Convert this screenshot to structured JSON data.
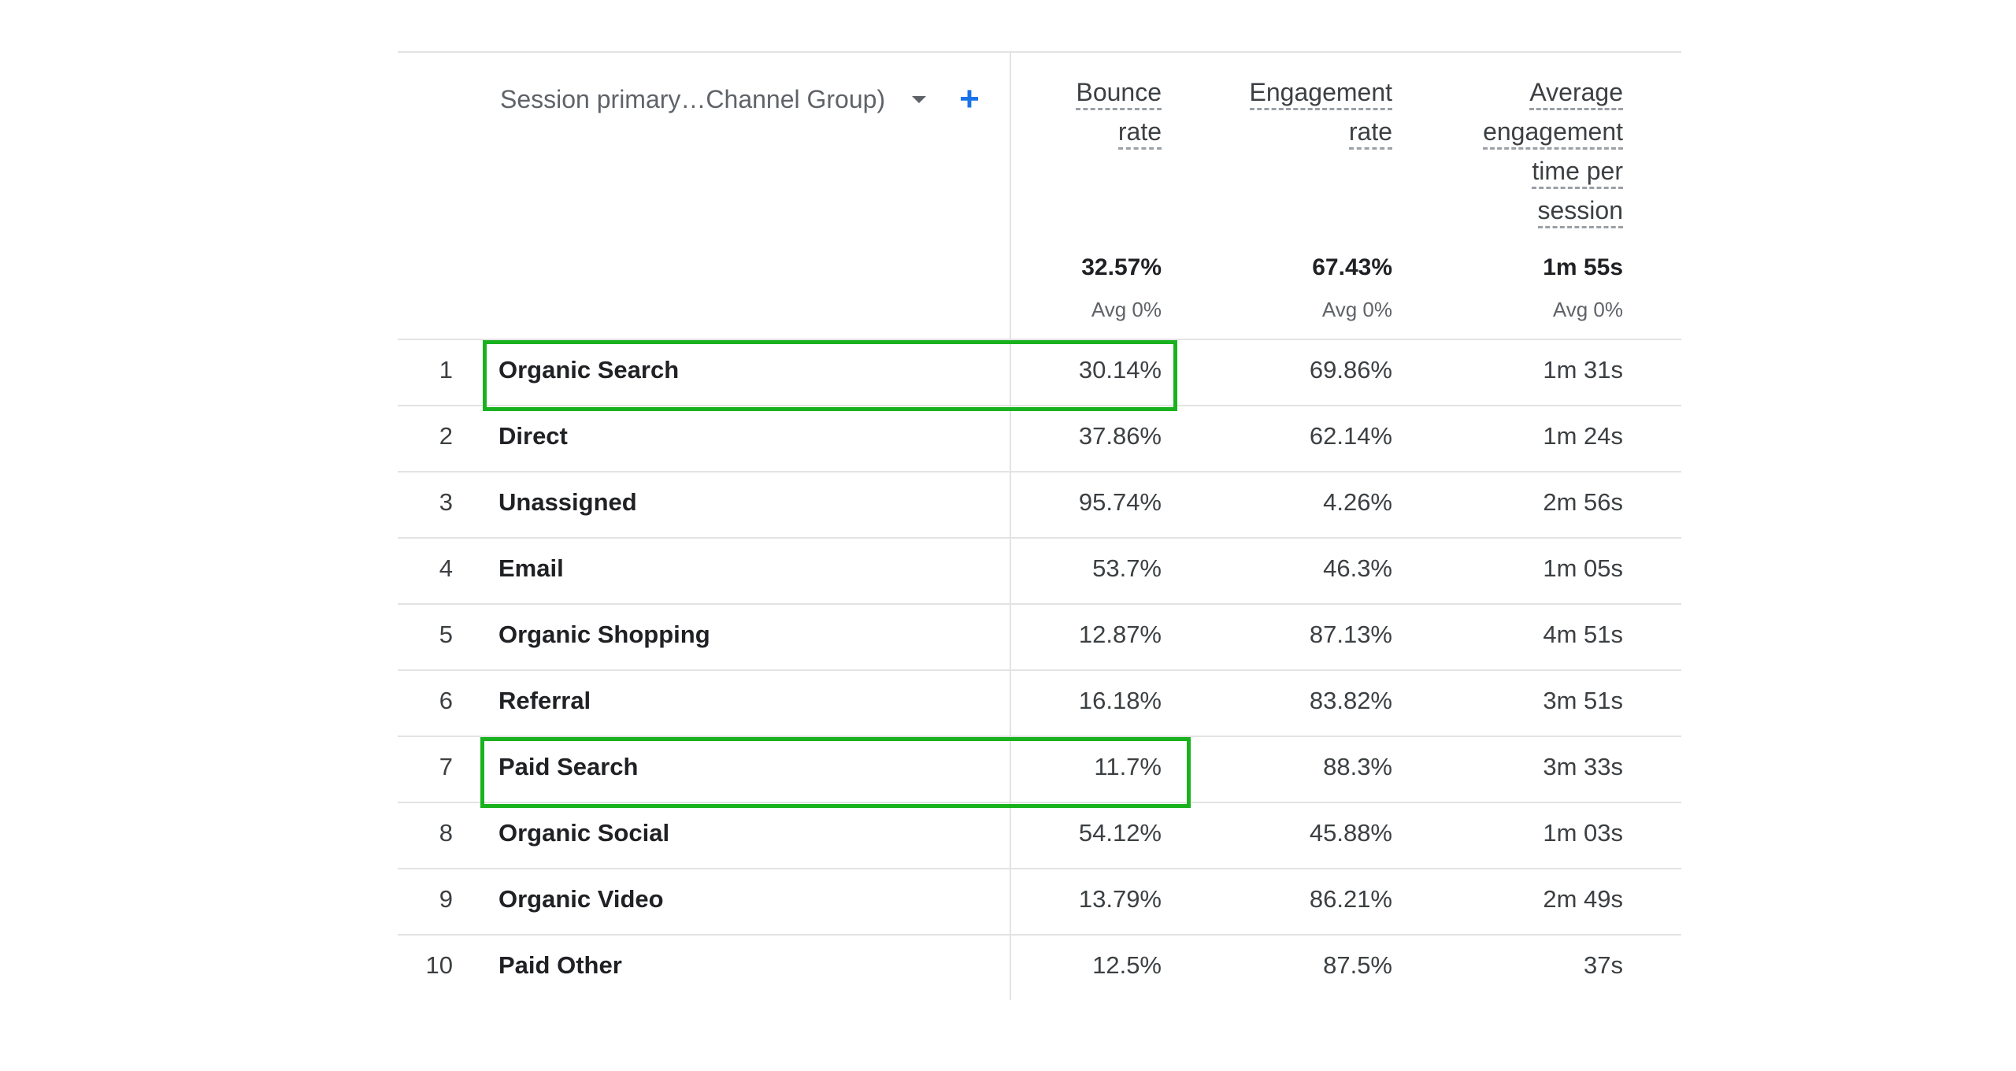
{
  "table": {
    "dimension_label": "Session primary…Channel Group)",
    "add_label": "+",
    "headers": {
      "bounce": [
        "Bounce",
        "rate"
      ],
      "engagement": [
        "Engagement",
        "rate"
      ],
      "avg_time": [
        "Average",
        "engagement",
        "time per",
        "session"
      ]
    },
    "totals": {
      "bounce": "32.57%",
      "engagement": "67.43%",
      "avg_time": "1m 55s",
      "bounce_avg": "Avg 0%",
      "engagement_avg": "Avg 0%",
      "avg_time_avg": "Avg 0%"
    },
    "rows": [
      {
        "index": "1",
        "name": "Organic Search",
        "bounce": "30.14%",
        "engagement": "69.86%",
        "avg_time": "1m 31s"
      },
      {
        "index": "2",
        "name": "Direct",
        "bounce": "37.86%",
        "engagement": "62.14%",
        "avg_time": "1m 24s"
      },
      {
        "index": "3",
        "name": "Unassigned",
        "bounce": "95.74%",
        "engagement": "4.26%",
        "avg_time": "2m 56s"
      },
      {
        "index": "4",
        "name": "Email",
        "bounce": "53.7%",
        "engagement": "46.3%",
        "avg_time": "1m 05s"
      },
      {
        "index": "5",
        "name": "Organic Shopping",
        "bounce": "12.87%",
        "engagement": "87.13%",
        "avg_time": "4m 51s"
      },
      {
        "index": "6",
        "name": "Referral",
        "bounce": "16.18%",
        "engagement": "83.82%",
        "avg_time": "3m 51s"
      },
      {
        "index": "7",
        "name": "Paid Search",
        "bounce": "11.7%",
        "engagement": "88.3%",
        "avg_time": "3m 33s"
      },
      {
        "index": "8",
        "name": "Organic Social",
        "bounce": "54.12%",
        "engagement": "45.88%",
        "avg_time": "1m 03s"
      },
      {
        "index": "9",
        "name": "Organic Video",
        "bounce": "13.79%",
        "engagement": "86.21%",
        "avg_time": "2m 49s"
      },
      {
        "index": "10",
        "name": "Paid Other",
        "bounce": "12.5%",
        "engagement": "87.5%",
        "avg_time": "37s"
      }
    ]
  },
  "colors": {
    "highlight": "#19b21e",
    "accent": "#1a73e8",
    "divider": "#e3e3e3"
  },
  "icons": {
    "dropdown": "chevron-down-icon",
    "add": "plus-icon"
  }
}
